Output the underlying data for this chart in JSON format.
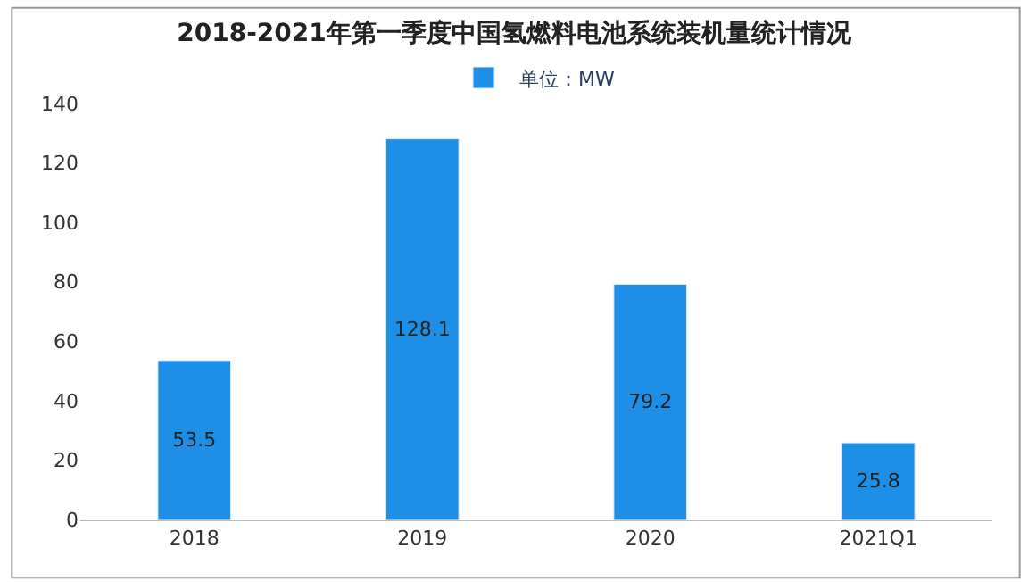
{
  "chart_data": {
    "type": "bar",
    "title": "2018-2021年第一季度中国氢燃料电池系统装机量统计情况",
    "categories": [
      "2018",
      "2019",
      "2020",
      "2021Q1"
    ],
    "series": [
      {
        "name": "单位：MW",
        "color": "#1e8fe6",
        "values": [
          53.5,
          128.1,
          79.2,
          25.8
        ]
      }
    ],
    "ylim": [
      0,
      140
    ],
    "yticks": [
      0,
      20,
      40,
      60,
      80,
      100,
      120,
      140
    ],
    "data_labels": true,
    "legend": "top",
    "grid": false
  }
}
